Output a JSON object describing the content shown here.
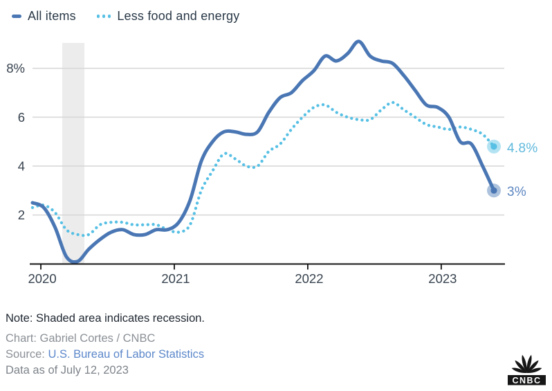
{
  "legend": {
    "items": [
      {
        "label": "All items",
        "swatch": "solid-line"
      },
      {
        "label": "Less food and energy",
        "swatch": "dotted-line"
      }
    ]
  },
  "chart_data": {
    "type": "line",
    "title": "",
    "xlabel": "",
    "ylabel": "",
    "ylim": [
      0,
      9
    ],
    "grid": "horizontal",
    "y_ticks": [
      2,
      4,
      6,
      8
    ],
    "y_tick_labels": [
      "2",
      "4",
      "6",
      "8%"
    ],
    "x_tick_labels": [
      "2020",
      "2021",
      "2022",
      "2023"
    ],
    "x_months": [
      "2020-01",
      "2020-02",
      "2020-03",
      "2020-04",
      "2020-05",
      "2020-06",
      "2020-07",
      "2020-08",
      "2020-09",
      "2020-10",
      "2020-11",
      "2020-12",
      "2021-01",
      "2021-02",
      "2021-03",
      "2021-04",
      "2021-05",
      "2021-06",
      "2021-07",
      "2021-08",
      "2021-09",
      "2021-10",
      "2021-11",
      "2021-12",
      "2022-01",
      "2022-02",
      "2022-03",
      "2022-04",
      "2022-05",
      "2022-06",
      "2022-07",
      "2022-08",
      "2022-09",
      "2022-10",
      "2022-11",
      "2022-12",
      "2023-01",
      "2023-02",
      "2023-03",
      "2023-04",
      "2023-05",
      "2023-06"
    ],
    "recession_band": {
      "label": "recession",
      "start_month_index": 2.64,
      "end_month_index": 4.61,
      "color": "#ececec"
    },
    "series": [
      {
        "name": "All items",
        "style": "solid",
        "color": "#4a77b4",
        "end_label": "3%",
        "end_label_color": "#5d86c1",
        "values": [
          2.5,
          2.3,
          1.5,
          0.3,
          0.1,
          0.6,
          1.0,
          1.3,
          1.4,
          1.2,
          1.2,
          1.4,
          1.4,
          1.7,
          2.6,
          4.2,
          5.0,
          5.4,
          5.4,
          5.3,
          5.4,
          6.2,
          6.8,
          7.0,
          7.5,
          7.9,
          8.5,
          8.3,
          8.6,
          9.1,
          8.5,
          8.3,
          8.2,
          7.7,
          7.1,
          6.5,
          6.4,
          6.0,
          5.0,
          4.9,
          4.0,
          3.0
        ]
      },
      {
        "name": "Less food and energy",
        "style": "dotted",
        "color": "#57c0e4",
        "end_label": "4.8%",
        "end_label_color": "#5fb9dc",
        "values": [
          2.3,
          2.4,
          2.1,
          1.4,
          1.2,
          1.2,
          1.6,
          1.7,
          1.7,
          1.6,
          1.6,
          1.6,
          1.4,
          1.3,
          1.6,
          3.0,
          3.8,
          4.5,
          4.3,
          4.0,
          4.0,
          4.6,
          4.9,
          5.5,
          6.0,
          6.4,
          6.5,
          6.2,
          6.0,
          5.9,
          5.9,
          6.3,
          6.6,
          6.3,
          6.0,
          5.7,
          5.6,
          5.5,
          5.6,
          5.5,
          5.3,
          4.8
        ]
      }
    ],
    "colors": {
      "gridline": "#d8d8d8",
      "axis": "#111111",
      "tick_label": "#37424e"
    }
  },
  "footer": {
    "note": "Note: Shaded area indicates recession.",
    "credit": "Chart: Gabriel Cortes / CNBC",
    "source_prefix": "Source: ",
    "source_link": "U.S. Bureau of Labor Statistics",
    "source_link_color": "#5b87ca",
    "data_as_of": "Data as of July 12, 2023"
  },
  "logo": {
    "brand": "CNBC"
  }
}
